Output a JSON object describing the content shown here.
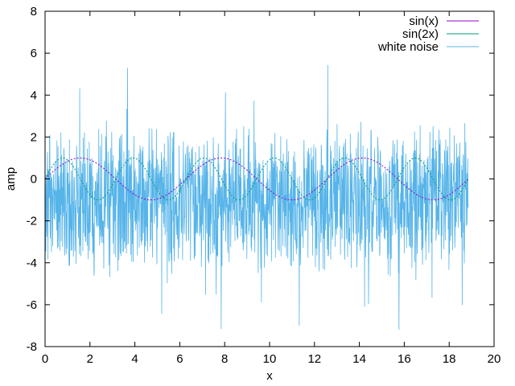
{
  "chart_data": {
    "type": "line",
    "xlabel": "x",
    "ylabel": "amp",
    "xlim": [
      0,
      20
    ],
    "ylim": [
      -8,
      8
    ],
    "xticks": [
      "0",
      "2",
      "4",
      "6",
      "8",
      "10",
      "12",
      "14",
      "16",
      "18",
      "20"
    ],
    "yticks": [
      "-8",
      "-6",
      "-4",
      "-2",
      "0",
      "2",
      "4",
      "6",
      "8"
    ],
    "x_range_data": [
      0,
      18.85
    ],
    "grid": false,
    "legend_position": "top-right",
    "series": [
      {
        "name": "sin(x)",
        "function": "sin(x)",
        "color": "#9400d3"
      },
      {
        "name": "sin(2x)",
        "function": "sin(2x)",
        "color": "#009e73"
      },
      {
        "name": "white noise",
        "function": "uniform noise",
        "color": "#56b4e9",
        "center": -1,
        "spread": 2.5,
        "extreme_min": -8,
        "extreme_max": 7.2
      }
    ]
  }
}
